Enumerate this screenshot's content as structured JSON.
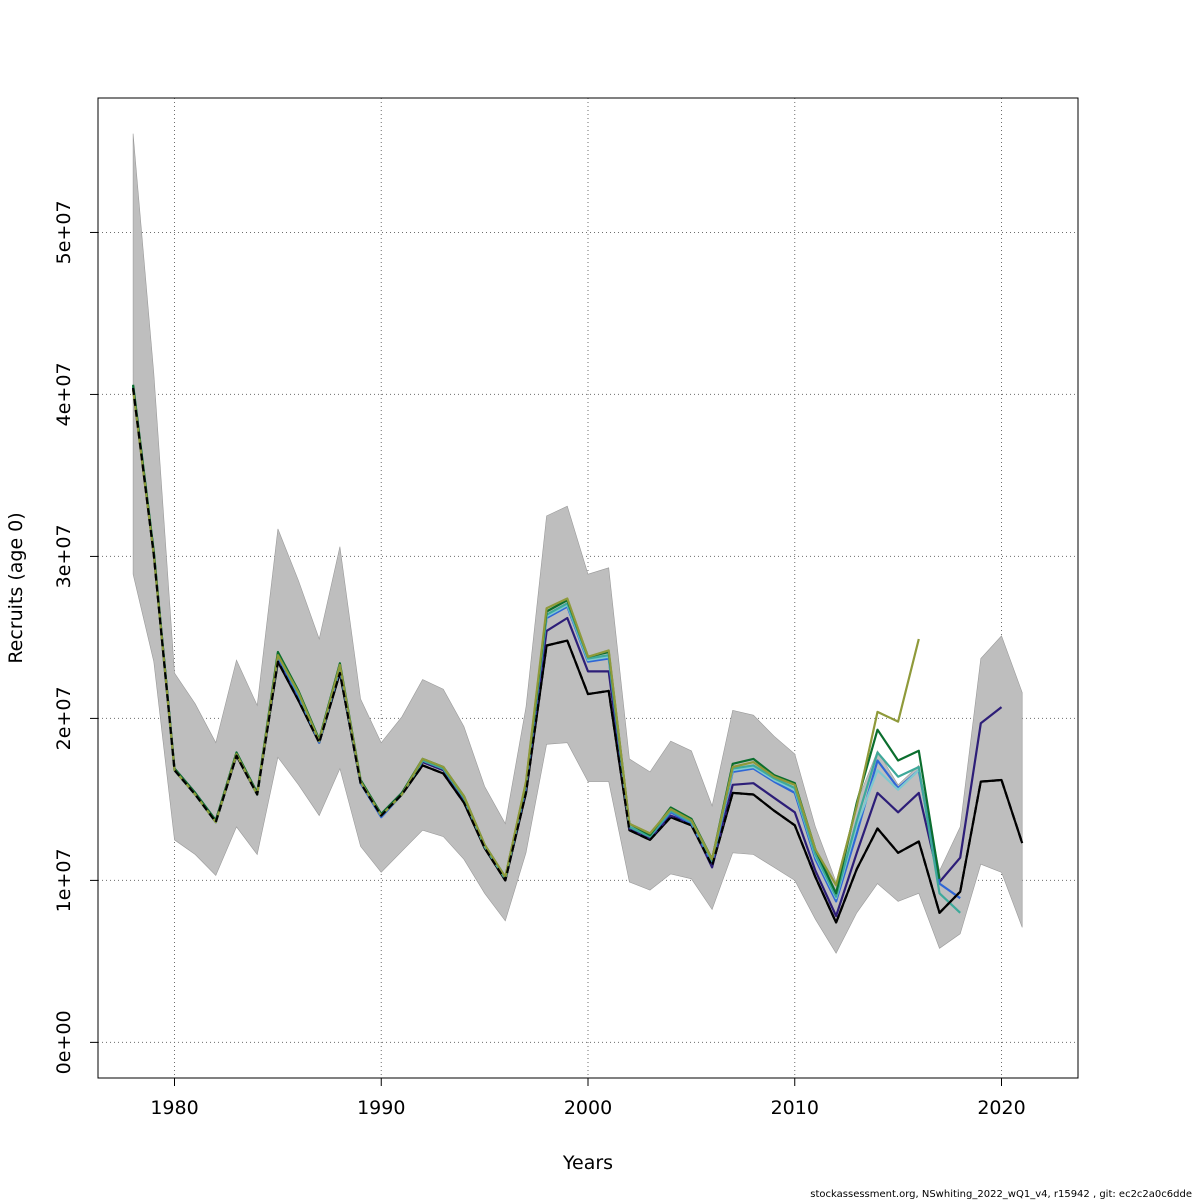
{
  "chart_data": {
    "type": "line",
    "xlabel": "Years",
    "ylabel": "Recruits (age 0)",
    "xlim": [
      1976.3,
      2023.7
    ],
    "ylim": [
      -2200000,
      58300000
    ],
    "x_ticks": [
      1980,
      1990,
      2000,
      2010,
      2020
    ],
    "x_tick_labels": [
      "1980",
      "1990",
      "2000",
      "2010",
      "2020"
    ],
    "y_ticks": [
      0,
      10000000,
      20000000,
      30000000,
      40000000,
      50000000
    ],
    "y_tick_labels": [
      "0e+00",
      "1e+07",
      "2e+07",
      "3e+07",
      "4e+07",
      "5e+07"
    ],
    "grid": true,
    "footer": "stockassessment.org, NSwhiting_2022_wQ1_v4, r15942 , git: ec2c2a0c6dde",
    "band": {
      "color": "#bebebe",
      "x": [
        1978,
        1979,
        1980,
        1981,
        1982,
        1983,
        1984,
        1985,
        1986,
        1987,
        1988,
        1989,
        1990,
        1991,
        1992,
        1993,
        1994,
        1995,
        1996,
        1997,
        1998,
        1999,
        2000,
        2001,
        2002,
        2003,
        2004,
        2005,
        2006,
        2007,
        2008,
        2009,
        2010,
        2011,
        2012,
        2013,
        2014,
        2015,
        2016,
        2017,
        2018,
        2019,
        2020,
        2021
      ],
      "lower": [
        28900000,
        23500000,
        12500000,
        11600000,
        10300000,
        13300000,
        11600000,
        17600000,
        15900000,
        14000000,
        16900000,
        12100000,
        10500000,
        11800000,
        13100000,
        12700000,
        11300000,
        9200000,
        7500000,
        11700000,
        18400000,
        18500000,
        16100000,
        16100000,
        9900000,
        9400000,
        10400000,
        10100000,
        8200000,
        11700000,
        11600000,
        10800000,
        10000000,
        7600000,
        5500000,
        8000000,
        9800000,
        8700000,
        9200000,
        5800000,
        6700000,
        11000000,
        10500000,
        7100000
      ],
      "upper": [
        56100000,
        41300000,
        22800000,
        20900000,
        18500000,
        23600000,
        20800000,
        31700000,
        28500000,
        24900000,
        30600000,
        21200000,
        18500000,
        20100000,
        22400000,
        21800000,
        19500000,
        15800000,
        13500000,
        20700000,
        32500000,
        33100000,
        28900000,
        29300000,
        17500000,
        16700000,
        18600000,
        18000000,
        14600000,
        20500000,
        20200000,
        18900000,
        17800000,
        13300000,
        9900000,
        14800000,
        18000000,
        15900000,
        17100000,
        10600000,
        13300000,
        23700000,
        25100000,
        21600000
      ]
    },
    "series": [
      {
        "color": "#000000",
        "style": "solid",
        "x": [
          1978,
          1979,
          1980,
          1981,
          1982,
          1983,
          1984,
          1985,
          1986,
          1987,
          1988,
          1989,
          1990,
          1991,
          1992,
          1993,
          1994,
          1995,
          1996,
          1997,
          1998,
          1999,
          2000,
          2001,
          2002,
          2003,
          2004,
          2005,
          2006,
          2007,
          2008,
          2009,
          2010,
          2011,
          2012,
          2013,
          2014,
          2015,
          2016,
          2017,
          2018,
          2019,
          2020,
          2021
        ],
        "values": [
          40400000,
          30100000,
          16800000,
          15300000,
          13600000,
          17700000,
          15300000,
          23500000,
          21100000,
          18500000,
          22800000,
          16000000,
          14000000,
          15300000,
          17100000,
          16600000,
          14800000,
          12000000,
          10000000,
          15400000,
          24500000,
          24800000,
          21500000,
          21700000,
          13100000,
          12500000,
          13900000,
          13400000,
          10900000,
          15400000,
          15300000,
          14300000,
          13400000,
          10200000,
          7400000,
          10700000,
          13200000,
          11700000,
          12400000,
          8000000,
          9300000,
          16100000,
          16200000,
          12300000
        ]
      },
      {
        "color": "#2d1e78",
        "style": "solid",
        "x": [
          1978,
          1979,
          1980,
          1981,
          1982,
          1983,
          1984,
          1985,
          1986,
          1987,
          1988,
          1989,
          1990,
          1991,
          1992,
          1993,
          1994,
          1995,
          1996,
          1997,
          1998,
          1999,
          2000,
          2001,
          2002,
          2003,
          2004,
          2005,
          2006,
          2007,
          2008,
          2009,
          2010,
          2011,
          2012,
          2013,
          2014,
          2015,
          2016,
          2017,
          2018,
          2019,
          2020
        ],
        "values": [
          40500000,
          30200000,
          16900000,
          15400000,
          13700000,
          17800000,
          15400000,
          23700000,
          21300000,
          18600000,
          23000000,
          16100000,
          14100000,
          15400000,
          17300000,
          16800000,
          15000000,
          12100000,
          10100000,
          15600000,
          25400000,
          26200000,
          22900000,
          22900000,
          13200000,
          12600000,
          14000000,
          13500000,
          10800000,
          15900000,
          16000000,
          15100000,
          14200000,
          10600000,
          7800000,
          11700000,
          15400000,
          14200000,
          15400000,
          9900000,
          11400000,
          19700000,
          20700000
        ]
      },
      {
        "color": "#2f66d6",
        "style": "solid",
        "x": [
          1978,
          1979,
          1980,
          1981,
          1982,
          1983,
          1984,
          1985,
          1986,
          1987,
          1988,
          1989,
          1990,
          1991,
          1992,
          1993,
          1994,
          1995,
          1996,
          1997,
          1998,
          1999,
          2000,
          2001,
          2002,
          2003,
          2004,
          2005,
          2006,
          2007,
          2008,
          2009,
          2010,
          2011,
          2012,
          2013,
          2014,
          2015,
          2016,
          2017,
          2018
        ],
        "values": [
          40400000,
          30200000,
          16800000,
          15300000,
          13600000,
          17800000,
          15300000,
          23800000,
          21400000,
          18500000,
          23100000,
          16000000,
          13900000,
          15300000,
          17400000,
          16900000,
          15100000,
          12100000,
          10100000,
          15800000,
          26200000,
          26900000,
          23500000,
          23700000,
          13300000,
          12700000,
          14200000,
          13500000,
          11100000,
          16700000,
          16900000,
          16100000,
          15400000,
          11300000,
          8700000,
          12900000,
          17400000,
          15700000,
          16800000,
          9800000,
          8900000
        ]
      },
      {
        "color": "#7fc9cf",
        "style": "solid",
        "x": [
          1978,
          1979,
          1980,
          1981,
          1982,
          1983,
          1984,
          1985,
          1986,
          1987,
          1988,
          1989,
          1990,
          1991,
          1992,
          1993,
          1994,
          1995,
          1996,
          1997,
          1998,
          1999,
          2000,
          2001,
          2002,
          2003,
          2004,
          2005,
          2006,
          2007,
          2008,
          2009,
          2010,
          2011,
          2012,
          2013,
          2014,
          2015,
          2016
        ],
        "values": [
          40500000,
          30200000,
          16800000,
          15300000,
          13600000,
          17800000,
          15300000,
          23900000,
          21500000,
          18600000,
          23200000,
          16100000,
          14000000,
          15300000,
          17400000,
          16900000,
          15100000,
          12100000,
          10100000,
          15900000,
          26300000,
          27000000,
          23600000,
          23800000,
          13300000,
          12700000,
          14300000,
          13600000,
          11200000,
          16800000,
          17000000,
          16200000,
          15600000,
          11500000,
          8900000,
          13400000,
          16800000,
          15600000,
          16800000
        ]
      },
      {
        "color": "#3ea99a",
        "style": "solid",
        "x": [
          1978,
          1979,
          1980,
          1981,
          1982,
          1983,
          1984,
          1985,
          1986,
          1987,
          1988,
          1989,
          1990,
          1991,
          1992,
          1993,
          1994,
          1995,
          1996,
          1997,
          1998,
          1999,
          2000,
          2001,
          2002,
          2003,
          2004,
          2005,
          2006,
          2007,
          2008,
          2009,
          2010,
          2011,
          2012,
          2013,
          2014,
          2015,
          2016,
          2017,
          2018
        ],
        "values": [
          40500000,
          30200000,
          16800000,
          15300000,
          13600000,
          17800000,
          15300000,
          23900000,
          21500000,
          18600000,
          23200000,
          16100000,
          14000000,
          15300000,
          17400000,
          16900000,
          15100000,
          12100000,
          10100000,
          15900000,
          26400000,
          27100000,
          23700000,
          23900000,
          13300000,
          12700000,
          14300000,
          13600000,
          11200000,
          16900000,
          17100000,
          16300000,
          15700000,
          11600000,
          9000000,
          13700000,
          17900000,
          16400000,
          17000000,
          9200000,
          8000000
        ]
      },
      {
        "color": "#0b6e2e",
        "style": "solid",
        "x": [
          1978,
          1979,
          1980,
          1981,
          1982,
          1983,
          1984,
          1985,
          1986,
          1987,
          1988,
          1989,
          1990,
          1991,
          1992,
          1993,
          1994,
          1995,
          1996,
          1997,
          1998,
          1999,
          2000,
          2001,
          2002,
          2003,
          2004,
          2005,
          2006,
          2007,
          2008,
          2009,
          2010,
          2011,
          2012,
          2013,
          2014,
          2015,
          2016,
          2017
        ],
        "values": [
          40600000,
          30300000,
          16900000,
          15400000,
          13700000,
          17900000,
          15400000,
          24100000,
          21700000,
          18700000,
          23400000,
          16200000,
          14100000,
          15400000,
          17500000,
          17000000,
          15200000,
          12200000,
          10200000,
          16000000,
          26600000,
          27300000,
          23800000,
          24100000,
          13500000,
          12800000,
          14500000,
          13800000,
          11300000,
          17200000,
          17500000,
          16500000,
          16000000,
          11900000,
          9200000,
          14800000,
          19300000,
          17400000,
          18000000,
          10100000
        ]
      },
      {
        "color": "#8f9a3a",
        "style": "solid",
        "x": [
          1978,
          1979,
          1980,
          1981,
          1982,
          1983,
          1984,
          1985,
          1986,
          1987,
          1988,
          1989,
          1990,
          1991,
          1992,
          1993,
          1994,
          1995,
          1996,
          1997,
          1998,
          1999,
          2000,
          2001,
          2002,
          2003,
          2004,
          2005,
          2006,
          2007,
          2008,
          2009,
          2010,
          2011,
          2012,
          2013,
          2014,
          2015,
          2016
        ],
        "values": [
          40300000,
          30100000,
          16800000,
          15300000,
          13600000,
          17800000,
          15300000,
          23900000,
          21600000,
          18600000,
          23300000,
          16100000,
          14000000,
          15300000,
          17500000,
          17000000,
          15200000,
          12200000,
          10200000,
          16100000,
          26800000,
          27400000,
          23800000,
          24200000,
          13500000,
          12900000,
          14400000,
          13700000,
          11300000,
          17000000,
          17300000,
          16400000,
          15900000,
          11900000,
          9700000,
          14600000,
          20400000,
          19800000,
          24900000
        ]
      },
      {
        "color": "#000000",
        "style": "dashed",
        "x": [
          1978,
          1979,
          1980,
          1981,
          1982,
          1983,
          1984,
          1985,
          1986,
          1987,
          1988,
          1989,
          1990,
          1991,
          1992,
          1993,
          1994,
          1995,
          1996,
          1997,
          1998,
          1999,
          2000,
          2001,
          2002,
          2003,
          2004,
          2005,
          2006,
          2007,
          2008,
          2009,
          2010,
          2011,
          2012,
          2013,
          2014,
          2015,
          2016,
          2017,
          2018,
          2019,
          2020,
          2021
        ],
        "values": [
          40400000,
          30100000,
          16800000,
          15300000,
          13600000,
          17700000,
          15300000,
          23500000,
          21100000,
          18500000,
          22800000,
          16000000,
          14000000,
          15300000,
          17100000,
          16600000,
          14800000,
          12000000,
          10000000,
          15400000,
          24500000,
          24800000,
          21500000,
          21700000,
          13100000,
          12500000,
          13900000,
          13400000,
          10900000,
          15400000,
          15300000,
          14300000,
          13400000,
          10200000,
          7400000,
          10700000,
          13200000,
          11700000,
          12400000,
          8000000,
          9300000,
          16100000,
          16200000,
          12300000
        ]
      }
    ]
  }
}
